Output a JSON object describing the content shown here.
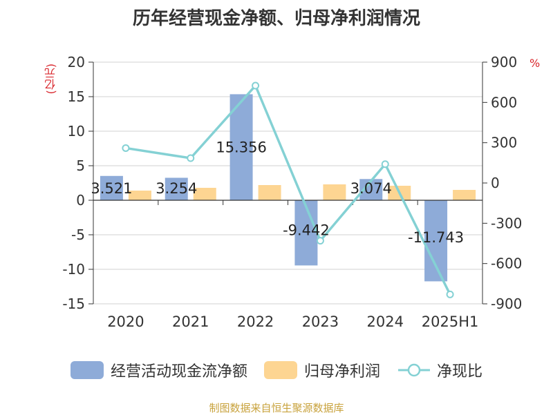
{
  "chart_data": {
    "type": "bar",
    "title": "历年经营现金净额、归母净利润情况",
    "left_unit": "(亿元)",
    "right_unit": "%",
    "categories": [
      "2020",
      "2021",
      "2022",
      "2023",
      "2024",
      "2025H1"
    ],
    "series": [
      {
        "name": "经营活动现金流净额",
        "type": "bar",
        "axis": "left",
        "color": "#8eabd8",
        "values": [
          3.521,
          3.254,
          15.356,
          -9.442,
          3.074,
          -11.743
        ],
        "labels": [
          "3.521",
          "3.254",
          "15.356",
          "-9.442",
          "3.074",
          "-11.743"
        ]
      },
      {
        "name": "归母净利润",
        "type": "bar",
        "axis": "left",
        "color": "#fdd592",
        "values": [
          1.4,
          1.8,
          2.2,
          2.3,
          2.1,
          1.5
        ]
      },
      {
        "name": "净现比",
        "type": "line",
        "axis": "right",
        "color": "#84d1d4",
        "values": [
          260,
          185,
          725,
          -430,
          140,
          -830
        ]
      }
    ],
    "left_axis": {
      "min": -15,
      "max": 20,
      "ticks": [
        "20",
        "15",
        "10",
        "5",
        "0",
        "-5",
        "-10",
        "-15"
      ],
      "tick_values": [
        20,
        15,
        10,
        5,
        0,
        -5,
        -10,
        -15
      ]
    },
    "right_axis": {
      "min": -900,
      "max": 900,
      "ticks": [
        "900",
        "600",
        "300",
        "0",
        "-300",
        "-600",
        "-900"
      ],
      "tick_values": [
        900,
        600,
        300,
        0,
        -300,
        -600,
        -900
      ]
    },
    "grid": true,
    "legend_position": "bottom"
  },
  "source": "制图数据来自恒生聚源数据库"
}
